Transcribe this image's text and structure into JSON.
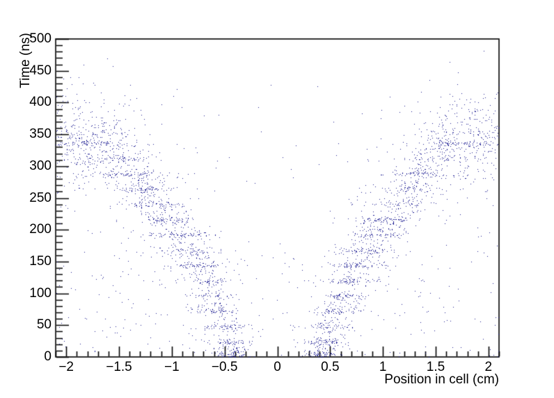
{
  "chart_data": {
    "type": "scatter",
    "title": "",
    "xlabel": "Position in cell (cm)",
    "ylabel": "Time (ns)",
    "xlim": [
      -2.1,
      2.1
    ],
    "ylim": [
      0,
      500
    ],
    "x_minor_step": 0.1,
    "y_minor_step": 10,
    "grid": false,
    "legend": false,
    "axis_color": "#000000",
    "marker": {
      "color": "#17178f",
      "size": 1
    },
    "x_ticks": [
      {
        "v": -2,
        "label": "−2"
      },
      {
        "v": -1.5,
        "label": "−1.5"
      },
      {
        "v": -1,
        "label": "−1"
      },
      {
        "v": -0.5,
        "label": "−0.5"
      },
      {
        "v": 0,
        "label": "0"
      },
      {
        "v": 0.5,
        "label": "0.5"
      },
      {
        "v": 1,
        "label": "1"
      },
      {
        "v": 1.5,
        "label": "1.5"
      },
      {
        "v": 2,
        "label": "2"
      }
    ],
    "y_ticks": [
      {
        "v": 0,
        "label": "0"
      },
      {
        "v": 50,
        "label": "50"
      },
      {
        "v": 100,
        "label": "100"
      },
      {
        "v": 150,
        "label": "150"
      },
      {
        "v": 200,
        "label": "200"
      },
      {
        "v": 250,
        "label": "250"
      },
      {
        "v": 300,
        "label": "300"
      },
      {
        "v": 350,
        "label": "350"
      },
      {
        "v": 400,
        "label": "400"
      },
      {
        "v": 450,
        "label": "450"
      },
      {
        "v": 500,
        "label": "500"
      }
    ],
    "summary": "V-shaped drift-time scatter: ~3600 navy 1px points. Two arms rise from |x|≈0.4 cm at 0 ns to |x|≈2.1 cm, saturating near 340 ns; dense horizontal bands every ~24 ns along the arms; sparse background noise; a few points up to ~410 ns; region above arms and central wedge are empty.",
    "scatter_spec": {
      "seed": 42,
      "drift_curve": [
        [
          0.38,
          0
        ],
        [
          0.8,
          170
        ],
        [
          1.2,
          250
        ],
        [
          1.55,
          330
        ],
        [
          2.1,
          345
        ]
      ],
      "stripes": {
        "t_start": 0,
        "t_step": 24,
        "t_end": 336,
        "count_min": 25,
        "count_max": 65,
        "t_sigma": 2.2,
        "x_width_base": 0.1,
        "x_width_slope": 0.09,
        "t0_center": 0.42,
        "t0_width": 0.09,
        "t0_tsigma": 9,
        "t0_boost": 1.6
      },
      "diffuse": {
        "count": 680,
        "t_sigma": 28,
        "x_jitter": 0.02,
        "u_min": 0.36,
        "u_max": 2.1
      },
      "halo": {
        "count": 250,
        "t_sigma": 70,
        "u_min": 0.36,
        "u_max": 2.1
      },
      "top_scatter": {
        "count": 30,
        "u_min": 1.25,
        "u_max": 2.1,
        "t_min": 348,
        "t_max": 412
      },
      "background": {
        "count": 380,
        "low_frac": 0.6,
        "t_low_max": 170,
        "t_high_max": 430
      }
    }
  }
}
